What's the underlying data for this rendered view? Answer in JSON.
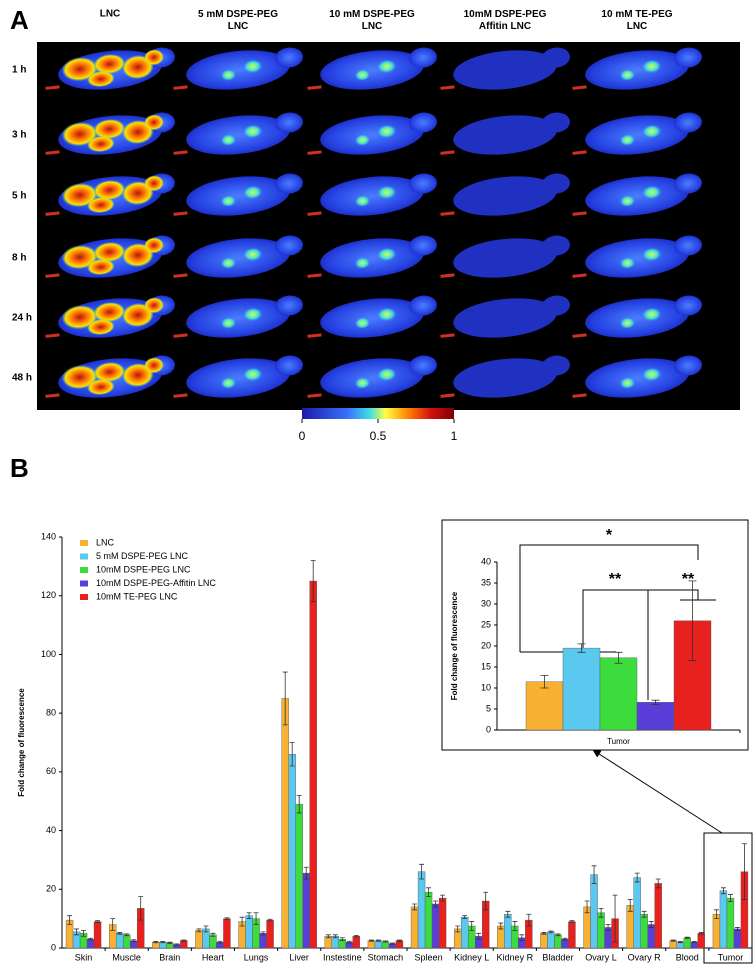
{
  "panel_a": {
    "label": "A",
    "columns": [
      "LNC",
      "5 mM DSPE-PEG\nLNC",
      "10 mM DSPE-PEG\nLNC",
      "10mM DSPE-PEG\nAffitin LNC",
      "10 mM TE-PEG\nLNC"
    ],
    "rows": [
      "1 h",
      "3 h",
      "5 h",
      "8 h",
      "24 h",
      "48 h"
    ],
    "colorbar_lim": [
      0,
      1
    ],
    "colorbar_ticks": [
      0,
      0.5,
      1
    ]
  },
  "panel_b_label": "B",
  "chart_data": [
    {
      "type": "bar",
      "y_label": "Fold change of fluorescence",
      "categories": [
        "Skin",
        "Muscle",
        "Brain",
        "Heart",
        "Lungs",
        "Liver",
        "Instestine",
        "Stomach",
        "Spleen",
        "Kidney L",
        "Kidney R",
        "Bladder",
        "Ovary L",
        "Ovary R",
        "Blood",
        "Tumor"
      ],
      "series": [
        {
          "name": "LNC",
          "color": "#f8b133",
          "values": [
            9.5,
            8,
            2,
            6,
            9,
            85,
            4,
            2.5,
            14,
            6.5,
            7.5,
            5,
            14,
            14.5,
            2.5,
            11.5
          ],
          "errors": [
            1.5,
            2,
            0.2,
            0.5,
            1.5,
            9,
            0.5,
            0.2,
            1,
            1,
            1,
            0.3,
            2,
            2,
            0.2,
            1.5
          ]
        },
        {
          "name": "5 mM DSPE-PEG LNC",
          "color": "#5bc8ef",
          "values": [
            5.5,
            5,
            2,
            6.5,
            11,
            66,
            4,
            2.5,
            26,
            10.5,
            11.5,
            5.5,
            25,
            24,
            2,
            19.5
          ],
          "errors": [
            1,
            0.3,
            0.2,
            1,
            1,
            4,
            0.5,
            0.2,
            2.5,
            0.5,
            1,
            0.3,
            3,
            1.5,
            0.2,
            1
          ]
        },
        {
          "name": "10mM DSPE-PEG LNC",
          "color": "#3ddc3d",
          "values": [
            5,
            4.5,
            1.8,
            4.5,
            10,
            49,
            3,
            2.2,
            19,
            7.5,
            7.5,
            4.5,
            12,
            11.5,
            3.5,
            17
          ],
          "errors": [
            1,
            0.3,
            0.2,
            0.5,
            2,
            3,
            0.5,
            0.2,
            1.5,
            1.5,
            1.5,
            0.3,
            1.5,
            1,
            0.2,
            1.2
          ]
        },
        {
          "name": "10mM DSPE-PEG-Affitin LNC",
          "color": "#5a3ed8",
          "values": [
            3,
            2.5,
            1.2,
            2,
            5,
            25.5,
            2,
            1.5,
            15,
            4,
            3.5,
            3,
            7,
            8,
            2,
            6.5
          ],
          "errors": [
            0.3,
            0.3,
            0.2,
            0.3,
            0.5,
            2,
            0.3,
            0.2,
            1,
            1,
            1,
            0.3,
            1,
            1,
            0.2,
            0.5
          ]
        },
        {
          "name": "10mM TE-PEG LNC",
          "color": "#e8201e",
          "values": [
            9,
            13.5,
            2.5,
            10,
            9.5,
            125,
            4,
            2.5,
            17,
            16,
            9.5,
            9,
            10,
            22,
            5,
            26
          ],
          "errors": [
            0.3,
            4,
            0.2,
            0.3,
            0.3,
            7,
            0.3,
            0.2,
            1,
            3,
            2,
            0.3,
            8,
            1.5,
            0.3,
            9.5
          ]
        }
      ],
      "ylim": [
        0,
        140
      ],
      "yticks": [
        0,
        20,
        40,
        60,
        80,
        100,
        120,
        140
      ],
      "legend": "upper left"
    },
    {
      "type": "bar",
      "y_label": "Fold change of fluorescence",
      "categories": [
        "Tumor"
      ],
      "series": [
        {
          "name": "LNC",
          "color": "#f8b133",
          "values": [
            11.5
          ],
          "errors": [
            1.5
          ]
        },
        {
          "name": "5 mM DSPE-PEG LNC",
          "color": "#5bc8ef",
          "values": [
            19.5
          ],
          "errors": [
            1
          ]
        },
        {
          "name": "10mM DSPE-PEG LNC",
          "color": "#3ddc3d",
          "values": [
            17.2
          ],
          "errors": [
            1.3
          ]
        },
        {
          "name": "10mM DSPE-PEG-Affitin LNC",
          "color": "#5a3ed8",
          "values": [
            6.6
          ],
          "errors": [
            0.5
          ]
        },
        {
          "name": "10mM TE-PEG LNC",
          "color": "#e8201e",
          "values": [
            26
          ],
          "errors": [
            9.5
          ]
        }
      ],
      "ylim": [
        0,
        40
      ],
      "yticks": [
        0,
        5,
        10,
        15,
        20,
        25,
        30,
        35,
        40
      ],
      "annotations": [
        "*",
        "**",
        "**"
      ]
    }
  ]
}
